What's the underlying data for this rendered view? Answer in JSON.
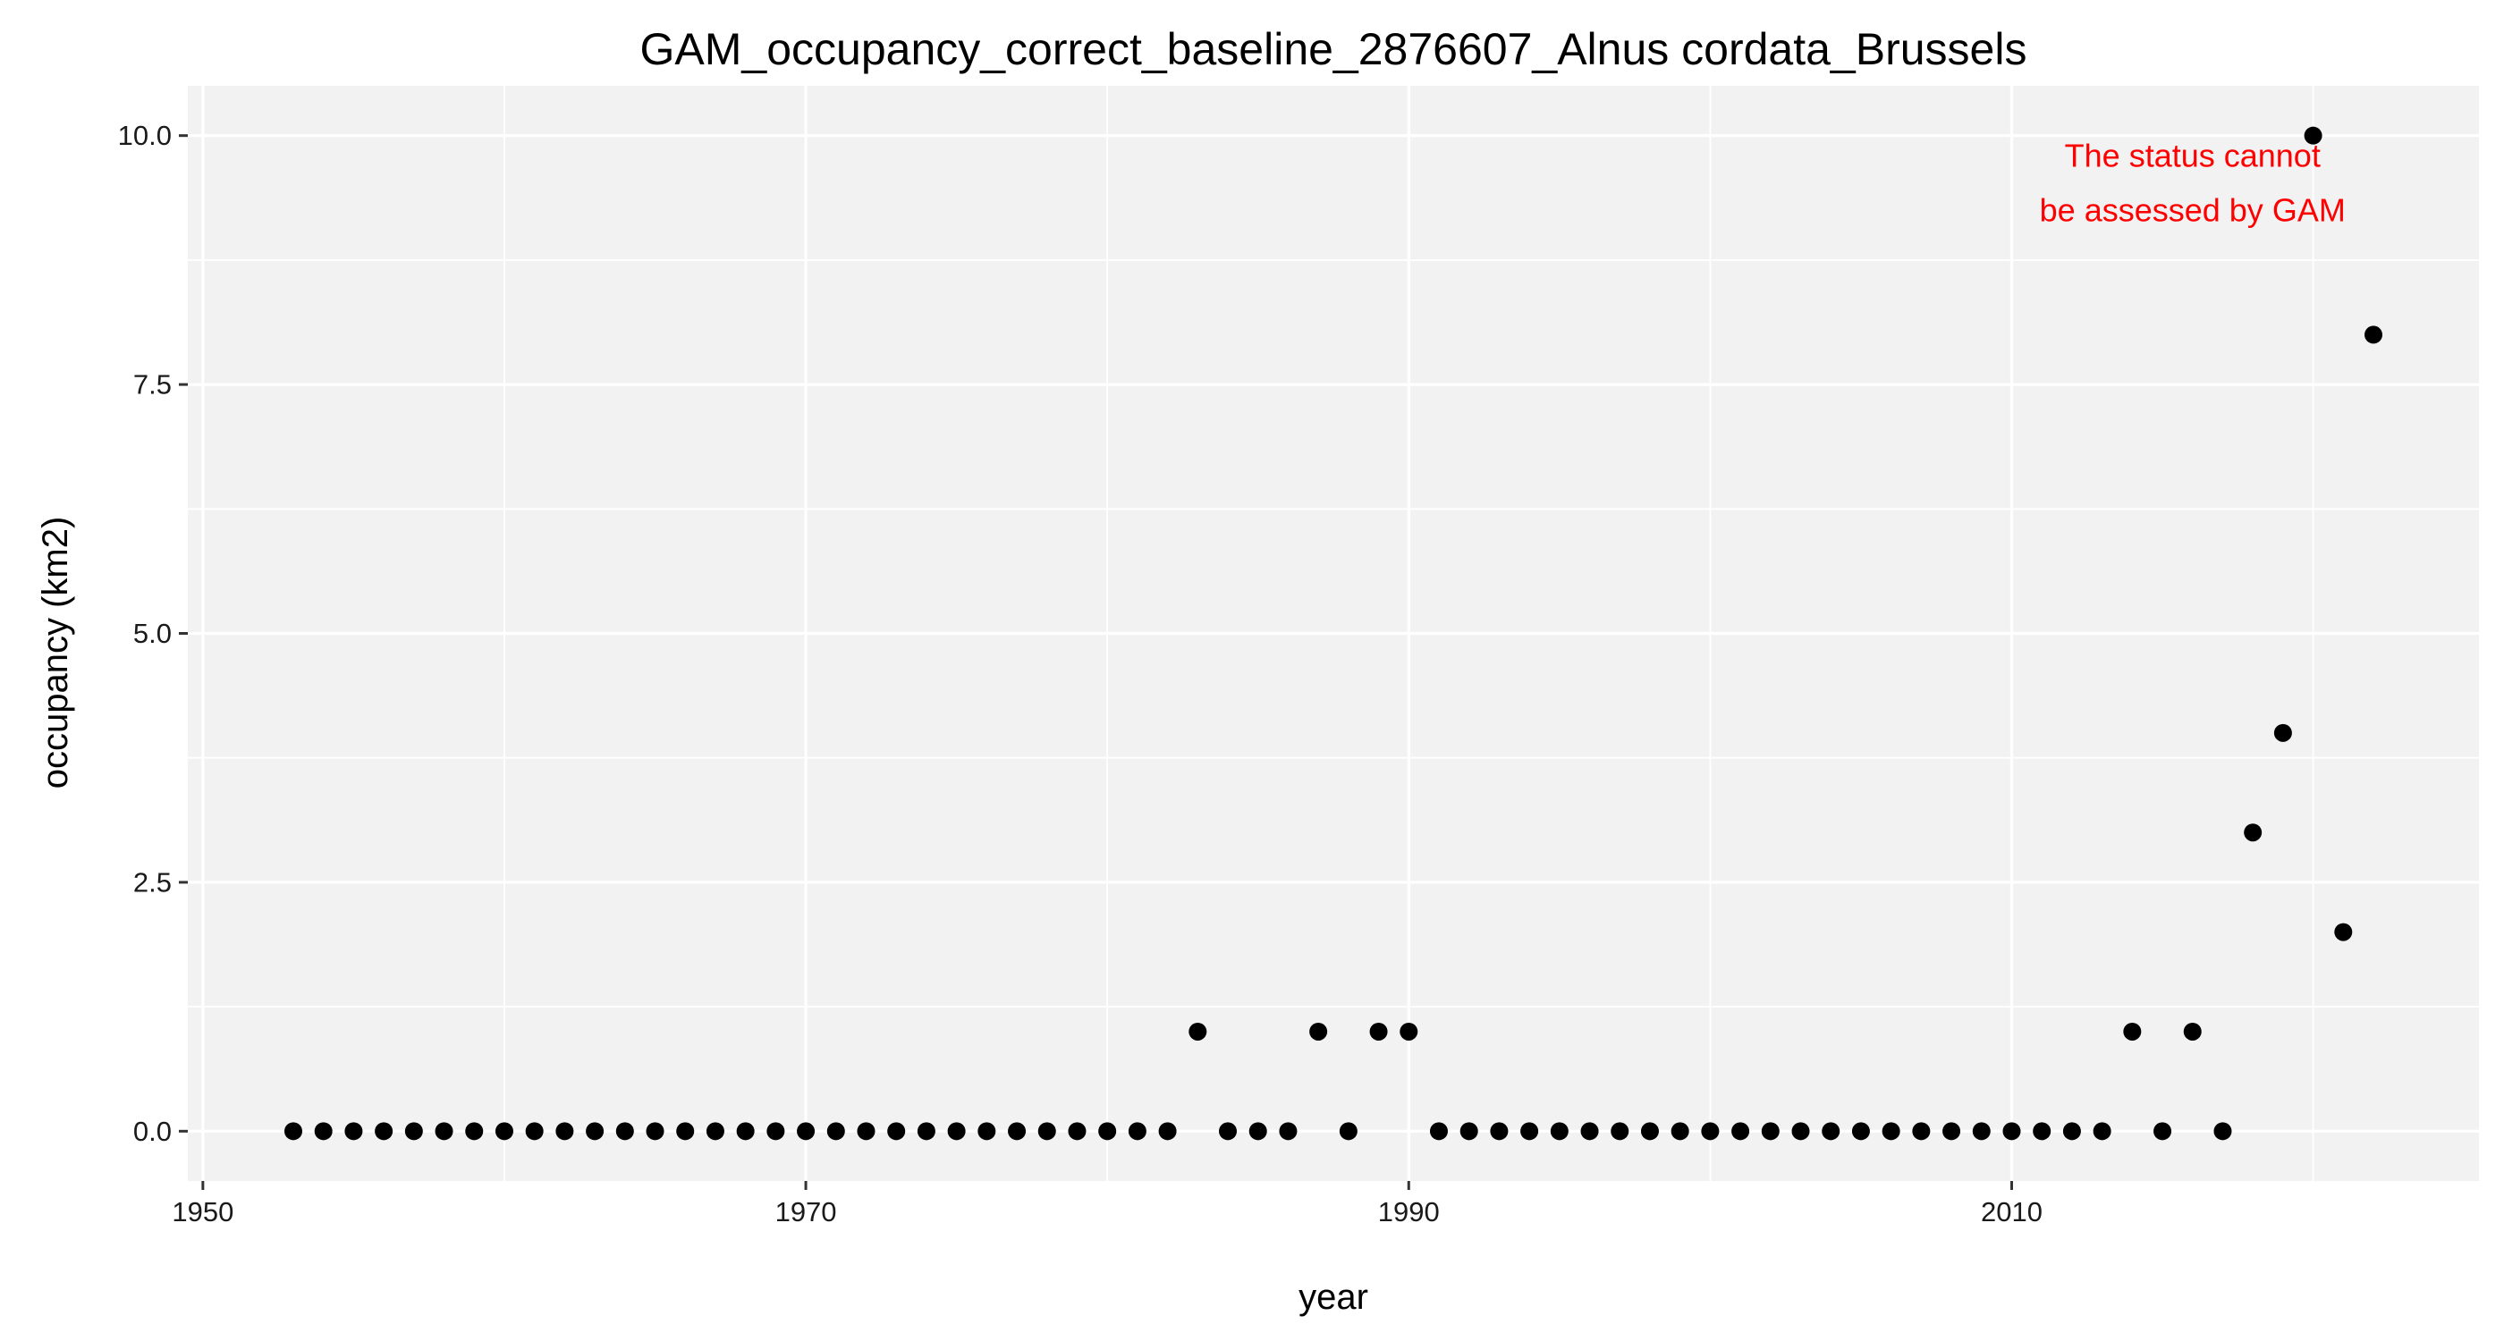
{
  "chart_data": {
    "type": "scatter",
    "title": "GAM_occupancy_correct_baseline_2876607_Alnus cordata_Brussels",
    "xlabel": "year",
    "ylabel": "occupancy (km2)",
    "xlim": [
      1949.5,
      2025.5
    ],
    "ylim": [
      -0.5,
      10.5
    ],
    "x_ticks": [
      1950,
      1970,
      1990,
      2010
    ],
    "x_tick_labels": [
      "1950",
      "1970",
      "1990",
      "2010"
    ],
    "x_minor_ticks": [
      1960,
      1980,
      2000,
      2020
    ],
    "y_ticks": [
      0,
      2.5,
      5,
      7.5,
      10
    ],
    "y_tick_labels": [
      "0.0",
      "2.5",
      "5.0",
      "7.5",
      "10.0"
    ],
    "y_minor_ticks": [
      1.25,
      3.75,
      6.25,
      8.75
    ],
    "grid": true,
    "panel_background": "#f2f2f2",
    "grid_color": "#ffffff",
    "point_color": "#000000",
    "annotation": {
      "lines": [
        "The status cannot",
        "be assessed by GAM"
      ],
      "color": "#ff0000",
      "x": 2016,
      "y": [
        9.8,
        9.25
      ]
    },
    "points": [
      {
        "x": 1953,
        "y": 0
      },
      {
        "x": 1954,
        "y": 0
      },
      {
        "x": 1955,
        "y": 0
      },
      {
        "x": 1956,
        "y": 0
      },
      {
        "x": 1957,
        "y": 0
      },
      {
        "x": 1958,
        "y": 0
      },
      {
        "x": 1959,
        "y": 0
      },
      {
        "x": 1960,
        "y": 0
      },
      {
        "x": 1961,
        "y": 0
      },
      {
        "x": 1962,
        "y": 0
      },
      {
        "x": 1963,
        "y": 0
      },
      {
        "x": 1964,
        "y": 0
      },
      {
        "x": 1965,
        "y": 0
      },
      {
        "x": 1966,
        "y": 0
      },
      {
        "x": 1967,
        "y": 0
      },
      {
        "x": 1968,
        "y": 0
      },
      {
        "x": 1969,
        "y": 0
      },
      {
        "x": 1970,
        "y": 0
      },
      {
        "x": 1971,
        "y": 0
      },
      {
        "x": 1972,
        "y": 0
      },
      {
        "x": 1973,
        "y": 0
      },
      {
        "x": 1974,
        "y": 0
      },
      {
        "x": 1975,
        "y": 0
      },
      {
        "x": 1976,
        "y": 0
      },
      {
        "x": 1977,
        "y": 0
      },
      {
        "x": 1978,
        "y": 0
      },
      {
        "x": 1979,
        "y": 0
      },
      {
        "x": 1980,
        "y": 0
      },
      {
        "x": 1981,
        "y": 0
      },
      {
        "x": 1982,
        "y": 0
      },
      {
        "x": 1983,
        "y": 1
      },
      {
        "x": 1984,
        "y": 0
      },
      {
        "x": 1985,
        "y": 0
      },
      {
        "x": 1986,
        "y": 0
      },
      {
        "x": 1987,
        "y": 1
      },
      {
        "x": 1988,
        "y": 0
      },
      {
        "x": 1989,
        "y": 1
      },
      {
        "x": 1990,
        "y": 1
      },
      {
        "x": 1991,
        "y": 0
      },
      {
        "x": 1992,
        "y": 0
      },
      {
        "x": 1993,
        "y": 0
      },
      {
        "x": 1994,
        "y": 0
      },
      {
        "x": 1995,
        "y": 0
      },
      {
        "x": 1996,
        "y": 0
      },
      {
        "x": 1997,
        "y": 0
      },
      {
        "x": 1998,
        "y": 0
      },
      {
        "x": 1999,
        "y": 0
      },
      {
        "x": 2000,
        "y": 0
      },
      {
        "x": 2001,
        "y": 0
      },
      {
        "x": 2002,
        "y": 0
      },
      {
        "x": 2003,
        "y": 0
      },
      {
        "x": 2004,
        "y": 0
      },
      {
        "x": 2005,
        "y": 0
      },
      {
        "x": 2006,
        "y": 0
      },
      {
        "x": 2007,
        "y": 0
      },
      {
        "x": 2008,
        "y": 0
      },
      {
        "x": 2009,
        "y": 0
      },
      {
        "x": 2010,
        "y": 0
      },
      {
        "x": 2011,
        "y": 0
      },
      {
        "x": 2012,
        "y": 0
      },
      {
        "x": 2013,
        "y": 0
      },
      {
        "x": 2014,
        "y": 1
      },
      {
        "x": 2015,
        "y": 0
      },
      {
        "x": 2016,
        "y": 1
      },
      {
        "x": 2017,
        "y": 0
      },
      {
        "x": 2018,
        "y": 3
      },
      {
        "x": 2019,
        "y": 4
      },
      {
        "x": 2020,
        "y": 10
      },
      {
        "x": 2021,
        "y": 2
      },
      {
        "x": 2022,
        "y": 8
      }
    ]
  }
}
